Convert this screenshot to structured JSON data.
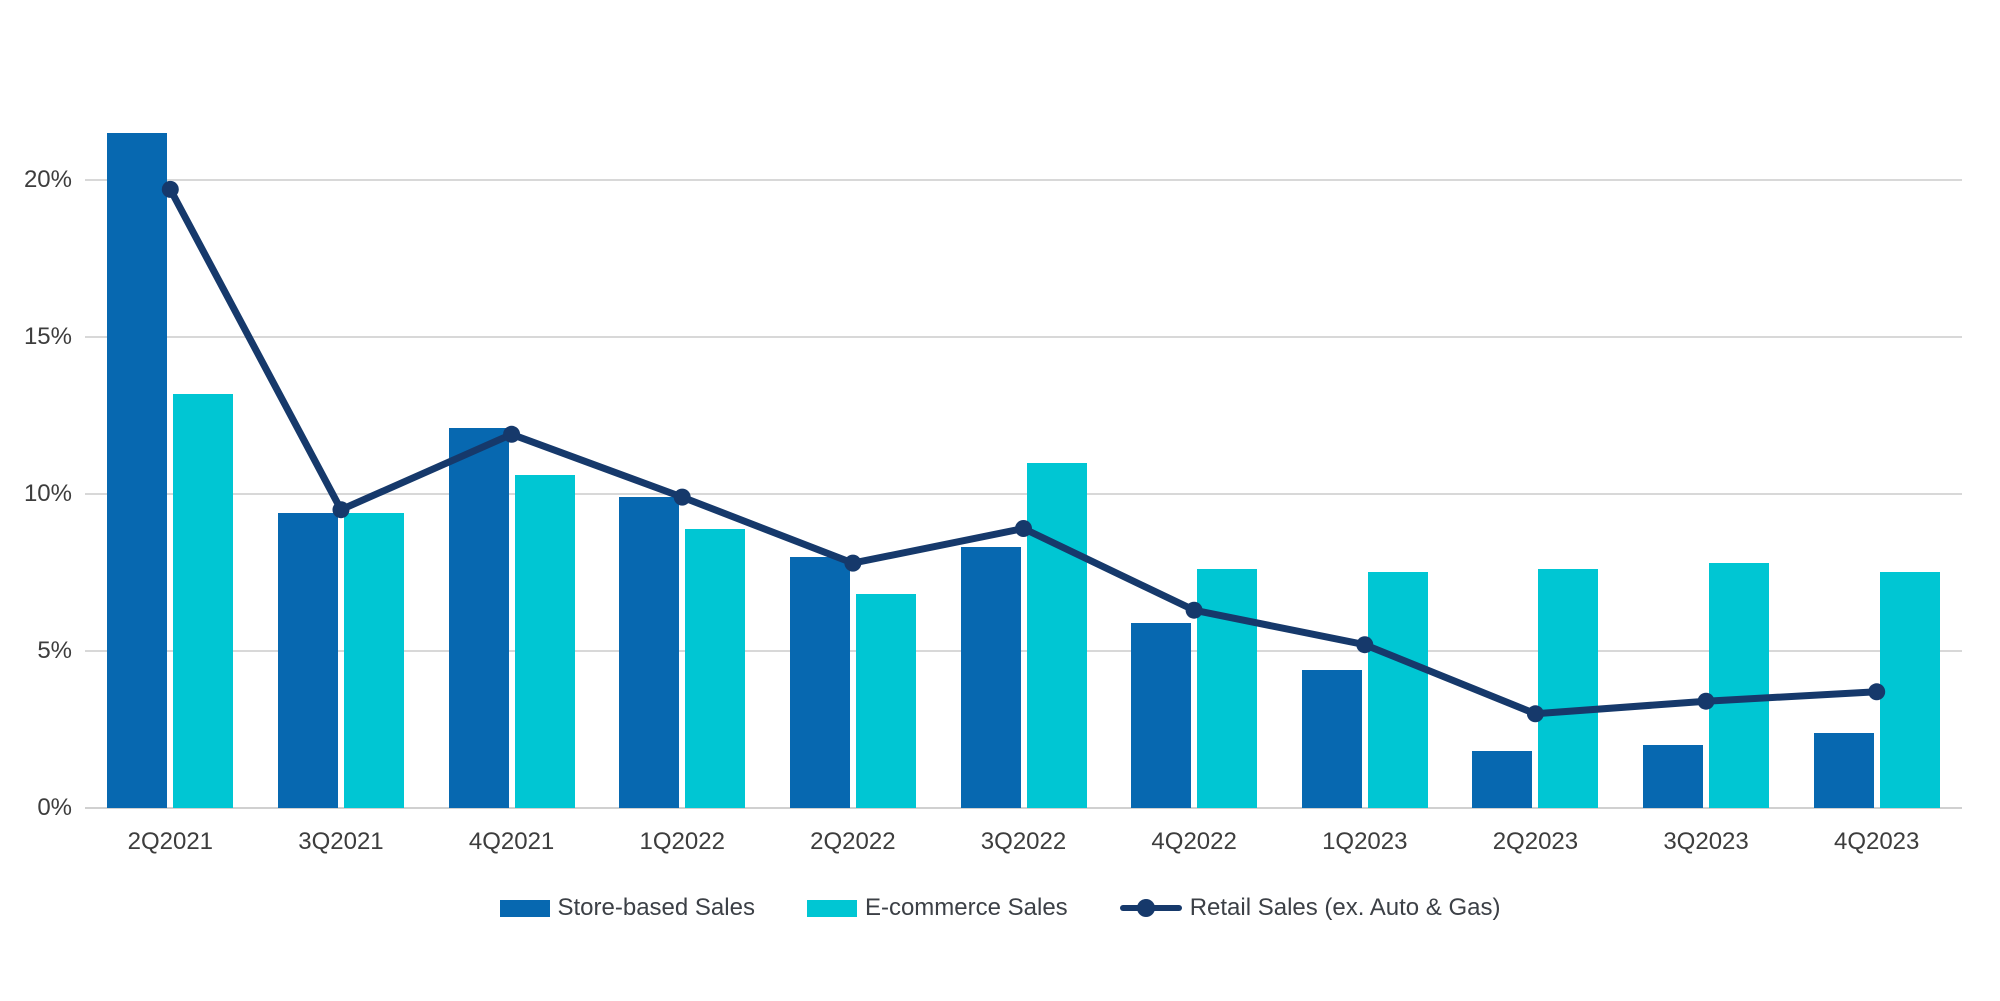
{
  "chart_data": {
    "type": "combo_bar_line",
    "title": "",
    "categories": [
      "2Q2021",
      "3Q2021",
      "4Q2021",
      "1Q2022",
      "2Q2022",
      "3Q2022",
      "4Q2022",
      "1Q2023",
      "2Q2023",
      "3Q2023",
      "4Q2023"
    ],
    "series": [
      {
        "name": "Store-based Sales",
        "type": "bar",
        "color": "#0768b0",
        "values": [
          21.5,
          9.4,
          12.1,
          9.9,
          8.0,
          8.3,
          5.9,
          4.4,
          1.8,
          2.0,
          2.4
        ]
      },
      {
        "name": "E-commerce Sales",
        "type": "bar",
        "color": "#00c6d3",
        "values": [
          13.2,
          9.4,
          10.6,
          8.9,
          6.8,
          11.0,
          7.6,
          7.5,
          7.6,
          7.8,
          7.5
        ]
      },
      {
        "name": "Retail Sales (ex. Auto & Gas)",
        "type": "line",
        "color": "#16396b",
        "values": [
          19.7,
          9.5,
          11.9,
          9.9,
          7.8,
          8.9,
          6.3,
          5.2,
          3.0,
          3.4,
          3.7
        ]
      }
    ],
    "xlabel": "",
    "ylabel": "",
    "ylim": [
      0,
      22.2
    ],
    "yticks": {
      "values": [
        0,
        5,
        10,
        15,
        20
      ],
      "labels": [
        "0%",
        "5%",
        "10%",
        "15%",
        "20%"
      ]
    },
    "grid": true,
    "legend_position": "bottom",
    "colors": {
      "background": "#ffffff",
      "gridline": "#d8d8d8",
      "axis_line": "#d0d0d0",
      "tick_text": "#3d3d3d",
      "legend_text": "#3c4046"
    }
  }
}
